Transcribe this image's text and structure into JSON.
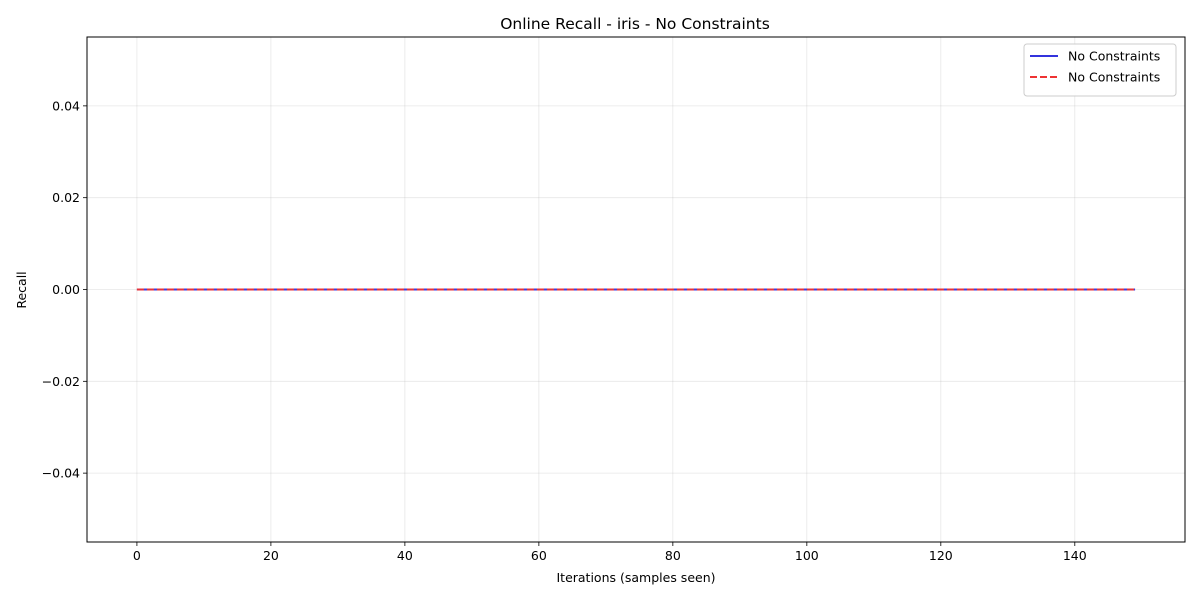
{
  "chart_data": {
    "type": "line",
    "title": "Online Recall - iris - No Constraints",
    "xlabel": "Iterations (samples seen)",
    "ylabel": "Recall",
    "xlim": [
      -7.45,
      156.45
    ],
    "ylim": [
      -0.055,
      0.055
    ],
    "xticks": [
      0,
      20,
      40,
      60,
      80,
      100,
      120,
      140
    ],
    "xtick_labels": [
      "0",
      "20",
      "40",
      "60",
      "80",
      "100",
      "120",
      "140"
    ],
    "yticks": [
      -0.04,
      -0.02,
      0.0,
      0.02,
      0.04
    ],
    "ytick_labels": [
      "−0.04",
      "−0.02",
      "0.00",
      "0.02",
      "0.04"
    ],
    "grid": true,
    "legend_position": "top-right",
    "series": [
      {
        "name": "No Constraints",
        "x_start": 0,
        "x_end": 149,
        "y_constant": 0.0,
        "color": "#3333dd",
        "style": "solid"
      },
      {
        "name": "No Constraints",
        "x_start": 0,
        "x_end": 149,
        "y_constant": 0.0,
        "color": "#ee3333",
        "style": "dashed"
      }
    ]
  }
}
